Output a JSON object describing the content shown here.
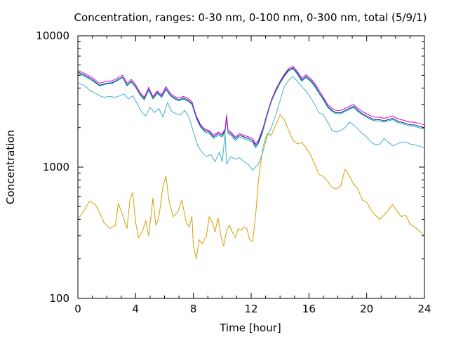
{
  "chart_data": {
    "type": "line",
    "title": "Concentration, ranges: 0-30 nm, 0-100 nm, 0-300 nm, total (5/9/1)",
    "xlabel": "Time [hour]",
    "ylabel": "Concentration",
    "xlim": [
      0,
      24
    ],
    "ylim": [
      100,
      10000
    ],
    "yscale": "log",
    "xticks": [
      0,
      4,
      8,
      12,
      16,
      20,
      24
    ],
    "xtick_labels": [
      "0",
      "4",
      "8",
      "12",
      "16",
      "20",
      "24"
    ],
    "yticks": [
      100,
      1000,
      10000
    ],
    "ytick_labels": [
      "100",
      "1000",
      "10000"
    ],
    "grid": false,
    "legend": "none",
    "series": [
      {
        "color": "#d4a000",
        "x": [
          0,
          0.5,
          0.8,
          1.2,
          1.5,
          1.8,
          2.2,
          2.6,
          2.8,
          3.1,
          3.4,
          3.6,
          3.8,
          4.0,
          4.2,
          4.5,
          4.7,
          4.9,
          5.2,
          5.4,
          5.6,
          5.9,
          6.1,
          6.3,
          6.6,
          6.9,
          7.2,
          7.5,
          7.7,
          7.9,
          8.0,
          8.2,
          8.4,
          8.6,
          8.9,
          9.1,
          9.3,
          9.5,
          9.7,
          9.9,
          10.1,
          10.3,
          10.5,
          10.7,
          10.9,
          11.1,
          11.3,
          11.5,
          11.7,
          11.9,
          12.1,
          12.3,
          12.5,
          12.8,
          13.1,
          13.4,
          13.7,
          14.0,
          14.3,
          14.6,
          14.9,
          15.2,
          15.5,
          15.8,
          16.1,
          16.4,
          16.7,
          17.0,
          17.3,
          17.6,
          17.9,
          18.2,
          18.5,
          18.8,
          19.1,
          19.4,
          19.7,
          20.0,
          20.3,
          20.6,
          20.9,
          21.2,
          21.5,
          21.8,
          22.1,
          22.4,
          22.7,
          23.0,
          23.3,
          23.6,
          24.0
        ],
        "values": [
          400,
          480,
          550,
          520,
          450,
          380,
          340,
          360,
          530,
          430,
          340,
          560,
          640,
          380,
          290,
          330,
          390,
          300,
          580,
          360,
          410,
          720,
          850,
          560,
          420,
          450,
          560,
          380,
          350,
          420,
          250,
          200,
          280,
          260,
          300,
          420,
          380,
          320,
          410,
          300,
          250,
          330,
          360,
          320,
          290,
          340,
          330,
          350,
          340,
          280,
          270,
          420,
          780,
          1400,
          1800,
          1750,
          2100,
          2500,
          2300,
          1900,
          1600,
          1500,
          1550,
          1400,
          1250,
          1050,
          880,
          850,
          780,
          700,
          680,
          720,
          960,
          860,
          740,
          680,
          560,
          540,
          470,
          430,
          400,
          430,
          470,
          520,
          460,
          420,
          430,
          370,
          350,
          330,
          300
        ]
      },
      {
        "color": "#40b0d0",
        "x": [
          0,
          0.5,
          0.8,
          1.2,
          1.5,
          1.8,
          2.2,
          2.6,
          2.9,
          3.2,
          3.5,
          3.8,
          4.1,
          4.4,
          4.7,
          5.0,
          5.3,
          5.6,
          5.9,
          6.2,
          6.5,
          6.8,
          7.1,
          7.4,
          7.7,
          8.0,
          8.3,
          8.6,
          8.9,
          9.2,
          9.5,
          9.8,
          10.0,
          10.2,
          10.3,
          10.4,
          10.6,
          10.9,
          11.2,
          11.5,
          11.8,
          12.1,
          12.3,
          12.5,
          12.8,
          13.1,
          13.4,
          13.7,
          14.0,
          14.3,
          14.6,
          14.9,
          15.2,
          15.5,
          15.8,
          16.1,
          16.4,
          16.7,
          17.0,
          17.3,
          17.6,
          17.9,
          18.2,
          18.5,
          18.8,
          19.1,
          19.4,
          19.7,
          20.0,
          20.3,
          20.6,
          20.9,
          21.2,
          21.5,
          21.8,
          22.1,
          22.4,
          22.7,
          23.0,
          23.3,
          23.6,
          24.0
        ],
        "values": [
          4400,
          4150,
          3850,
          3650,
          3500,
          3400,
          3450,
          3400,
          3500,
          3600,
          3300,
          3500,
          3050,
          2650,
          2450,
          2850,
          2600,
          2800,
          2400,
          3100,
          2650,
          2550,
          2500,
          2700,
          2400,
          1850,
          1450,
          1300,
          1200,
          1250,
          1100,
          1300,
          1100,
          1800,
          1050,
          1100,
          1200,
          1150,
          1180,
          1100,
          1050,
          950,
          1000,
          1050,
          1300,
          1700,
          2000,
          2500,
          3200,
          4100,
          4600,
          4900,
          4500,
          4100,
          3800,
          3400,
          3000,
          2600,
          2500,
          2200,
          1900,
          1850,
          1900,
          2000,
          2200,
          2100,
          1950,
          1800,
          1700,
          1550,
          1480,
          1500,
          1650,
          1550,
          1450,
          1500,
          1550,
          1550,
          1500,
          1480,
          1450,
          1400
        ]
      },
      {
        "color": "#1a1a8c",
        "x": [
          0,
          0.5,
          1.0,
          1.5,
          2.0,
          2.4,
          2.8,
          3.1,
          3.4,
          3.7,
          4.0,
          4.3,
          4.6,
          4.9,
          5.2,
          5.5,
          5.8,
          6.1,
          6.4,
          6.7,
          7.0,
          7.3,
          7.6,
          7.9,
          8.2,
          8.5,
          8.8,
          9.1,
          9.4,
          9.7,
          10.0,
          10.2,
          10.3,
          10.4,
          10.6,
          10.9,
          11.2,
          11.5,
          11.8,
          12.1,
          12.3,
          12.5,
          12.8,
          13.1,
          13.4,
          13.7,
          14.0,
          14.3,
          14.6,
          14.9,
          15.2,
          15.5,
          15.8,
          16.1,
          16.4,
          16.7,
          17.0,
          17.3,
          17.6,
          17.9,
          18.2,
          18.5,
          18.8,
          19.1,
          19.4,
          19.7,
          20.0,
          20.3,
          20.6,
          20.9,
          21.2,
          21.5,
          21.8,
          22.1,
          22.4,
          22.7,
          23.0,
          23.3,
          23.6,
          24.0
        ],
        "values": [
          5300,
          5000,
          4650,
          4200,
          4350,
          4400,
          4650,
          4850,
          4200,
          4500,
          4100,
          3600,
          3300,
          3900,
          3350,
          3700,
          3450,
          3950,
          3550,
          3350,
          3250,
          3350,
          3250,
          3050,
          2400,
          2050,
          1900,
          1850,
          1700,
          1800,
          1750,
          1900,
          2400,
          1850,
          1800,
          1650,
          1750,
          1700,
          1650,
          1600,
          1450,
          1550,
          1900,
          2500,
          3200,
          3800,
          4400,
          5000,
          5500,
          5700,
          5200,
          4600,
          4900,
          4600,
          4200,
          3700,
          3300,
          2900,
          2700,
          2600,
          2600,
          2700,
          2800,
          2900,
          2700,
          2550,
          2450,
          2350,
          2300,
          2300,
          2250,
          2300,
          2350,
          2250,
          2200,
          2150,
          2100,
          2100,
          2050,
          2000
        ]
      },
      {
        "color": "#00b0a0",
        "x": [
          0,
          0.5,
          1.0,
          1.5,
          2.0,
          2.4,
          2.8,
          3.1,
          3.4,
          3.7,
          4.0,
          4.3,
          4.6,
          4.9,
          5.2,
          5.5,
          5.8,
          6.1,
          6.4,
          6.7,
          7.0,
          7.3,
          7.6,
          7.9,
          8.2,
          8.5,
          8.8,
          9.1,
          9.4,
          9.7,
          10.0,
          10.2,
          10.3,
          10.4,
          10.6,
          10.9,
          11.2,
          11.5,
          11.8,
          12.1,
          12.3,
          12.5,
          12.8,
          13.1,
          13.4,
          13.7,
          14.0,
          14.3,
          14.6,
          14.9,
          15.2,
          15.5,
          15.8,
          16.1,
          16.4,
          16.7,
          17.0,
          17.3,
          17.6,
          17.9,
          18.2,
          18.5,
          18.8,
          19.1,
          19.4,
          19.7,
          20.0,
          20.3,
          20.6,
          20.9,
          21.2,
          21.5,
          21.8,
          22.1,
          22.4,
          22.7,
          23.0,
          23.3,
          23.6,
          24.0
        ],
        "values": [
          5200,
          4900,
          4550,
          4150,
          4300,
          4350,
          4600,
          4800,
          4150,
          4450,
          4050,
          3550,
          3250,
          3850,
          3300,
          3650,
          3400,
          3900,
          3500,
          3300,
          3200,
          3300,
          3200,
          3000,
          2350,
          2000,
          1850,
          1800,
          1650,
          1750,
          1700,
          1850,
          2450,
          1800,
          1750,
          1600,
          1700,
          1650,
          1600,
          1550,
          1400,
          1500,
          1850,
          2450,
          3150,
          3750,
          4350,
          4900,
          5400,
          5600,
          5100,
          4500,
          4800,
          4500,
          4100,
          3650,
          3250,
          2850,
          2650,
          2550,
          2550,
          2650,
          2750,
          2850,
          2650,
          2500,
          2400,
          2300,
          2250,
          2250,
          2200,
          2250,
          2300,
          2200,
          2150,
          2100,
          2050,
          2050,
          2000,
          1950
        ]
      },
      {
        "color": "#d000d0",
        "x": [
          0,
          0.5,
          1.0,
          1.5,
          2.0,
          2.4,
          2.8,
          3.1,
          3.4,
          3.7,
          4.0,
          4.3,
          4.6,
          4.9,
          5.2,
          5.5,
          5.8,
          6.1,
          6.4,
          6.7,
          7.0,
          7.3,
          7.6,
          7.9,
          8.2,
          8.5,
          8.8,
          9.1,
          9.4,
          9.7,
          10.0,
          10.2,
          10.3,
          10.4,
          10.6,
          10.9,
          11.2,
          11.5,
          11.8,
          12.1,
          12.3,
          12.5,
          12.8,
          13.1,
          13.4,
          13.7,
          14.0,
          14.3,
          14.6,
          14.9,
          15.2,
          15.5,
          15.8,
          16.1,
          16.4,
          16.7,
          17.0,
          17.3,
          17.6,
          17.9,
          18.2,
          18.5,
          18.8,
          19.1,
          19.4,
          19.7,
          20.0,
          20.3,
          20.6,
          20.9,
          21.2,
          21.5,
          21.8,
          22.1,
          22.4,
          22.7,
          23.0,
          23.3,
          23.6,
          24.0
        ],
        "values": [
          5450,
          5150,
          4800,
          4350,
          4500,
          4550,
          4800,
          5000,
          4350,
          4650,
          4250,
          3700,
          3400,
          4050,
          3450,
          3800,
          3550,
          4100,
          3650,
          3450,
          3350,
          3450,
          3350,
          3150,
          2450,
          2100,
          1950,
          1900,
          1750,
          1850,
          1800,
          1950,
          2500,
          1900,
          1850,
          1700,
          1800,
          1750,
          1700,
          1650,
          1500,
          1600,
          1950,
          2550,
          3250,
          3900,
          4500,
          5100,
          5650,
          5850,
          5350,
          4750,
          5050,
          4750,
          4350,
          3850,
          3400,
          3000,
          2800,
          2700,
          2700,
          2800,
          2900,
          3000,
          2800,
          2650,
          2550,
          2450,
          2400,
          2400,
          2350,
          2400,
          2450,
          2350,
          2300,
          2250,
          2200,
          2200,
          2150,
          2100
        ]
      }
    ]
  }
}
